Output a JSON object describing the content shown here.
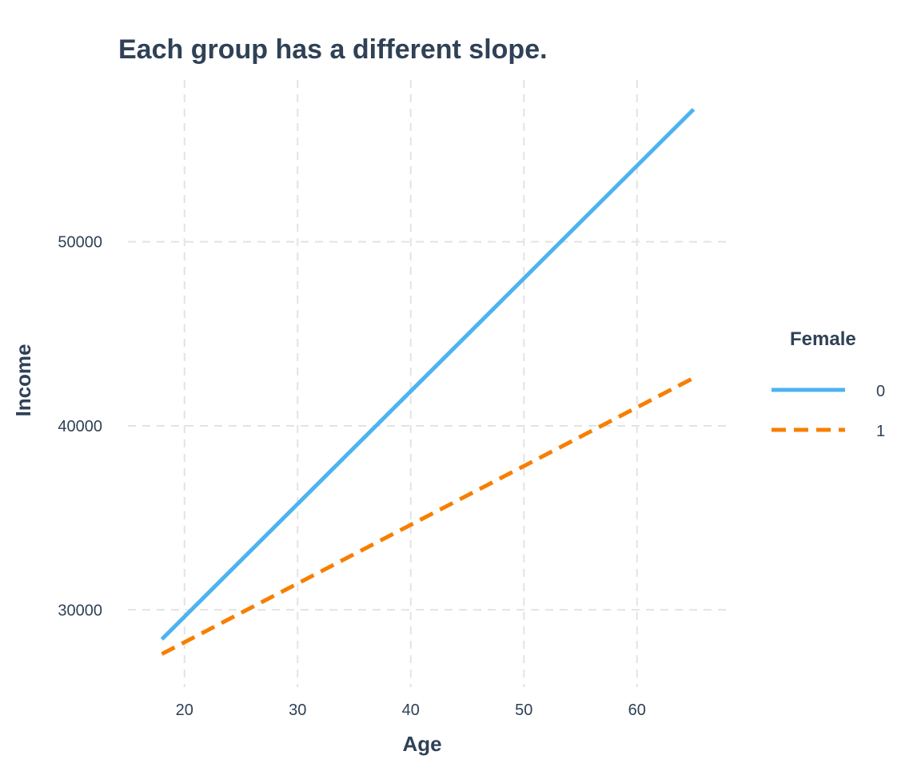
{
  "chart_data": {
    "type": "line",
    "title": "Each group has a different slope.",
    "xlabel": "Age",
    "ylabel": "Income",
    "xlim": [
      15,
      68
    ],
    "ylim": [
      25800,
      58800
    ],
    "x_ticks": [
      20,
      30,
      40,
      50,
      60
    ],
    "y_ticks": [
      30000,
      40000,
      50000
    ],
    "grid": true,
    "legend": {
      "title": "Female",
      "placement": "right"
    },
    "series": [
      {
        "name": "0",
        "color": "#4db3f0",
        "dash": "solid",
        "x": [
          18,
          65
        ],
        "y": [
          28400,
          57200
        ]
      },
      {
        "name": "1",
        "color": "#f77f00",
        "dash": "dashed",
        "x": [
          18,
          65
        ],
        "y": [
          27600,
          42600
        ]
      }
    ]
  }
}
